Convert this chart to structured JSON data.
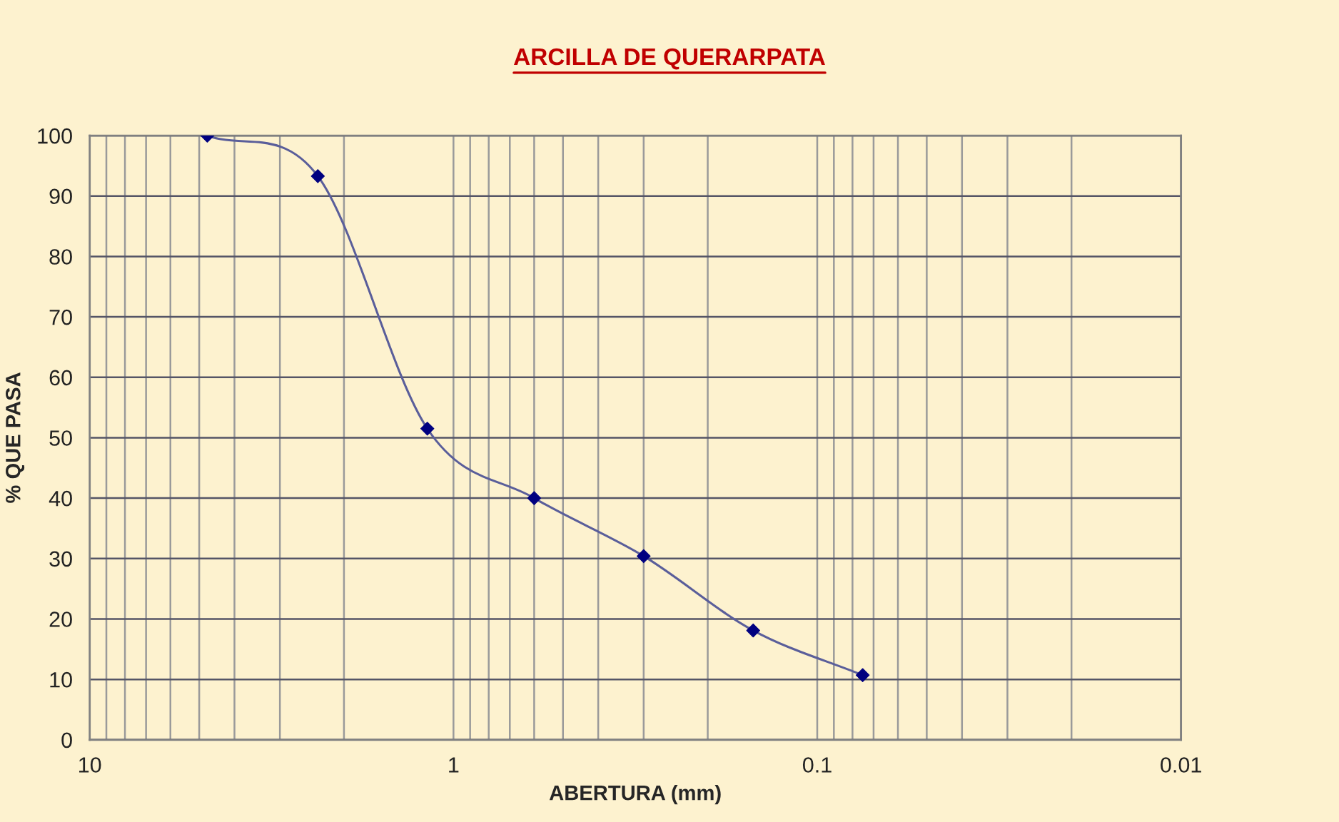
{
  "chart_data": {
    "type": "line",
    "title": "ARCILLA DE QUERARPATA",
    "xlabel": "ABERTURA (mm)",
    "ylabel": "% QUE PASA",
    "log": "x",
    "xlim": [
      10,
      0.01
    ],
    "xticks": [
      10,
      1,
      0.1,
      0.01
    ],
    "ylim": [
      0,
      100
    ],
    "yticks": [
      0,
      10,
      20,
      30,
      40,
      50,
      60,
      70,
      80,
      90,
      100
    ],
    "grid": true,
    "marker": "diamond",
    "line_style": "solid",
    "series": [
      {
        "color": "#000080",
        "x": [
          4.75,
          2.36,
          1.18,
          0.6,
          0.3,
          0.15,
          0.075
        ],
        "values": [
          100,
          93.3,
          51.5,
          40,
          30.4,
          18.1,
          10.7
        ]
      }
    ]
  }
}
